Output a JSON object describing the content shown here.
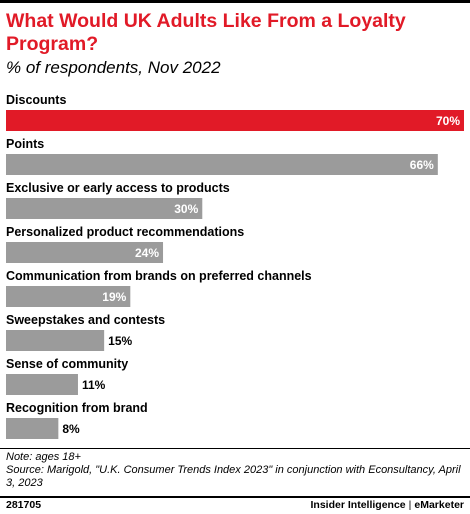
{
  "header": {
    "title": "What Would UK Adults Like From a Loyalty Program?",
    "subtitle": "% of respondents, Nov 2022"
  },
  "colors": {
    "title": "#e11a27",
    "highlight_bar": "#e11a27",
    "bar": "#9b9b9b"
  },
  "chart_data": {
    "type": "bar",
    "orientation": "horizontal",
    "categories": [
      "Discounts",
      "Points",
      "Exclusive or early access to products",
      "Personalized product recommendations",
      "Communication from brands on preferred channels",
      "Sweepstakes and contests",
      "Sense of community",
      "Recognition from brand"
    ],
    "values": [
      70,
      66,
      30,
      24,
      19,
      15,
      11,
      8
    ],
    "value_labels": [
      "70%",
      "66%",
      "30%",
      "24%",
      "19%",
      "15%",
      "11%",
      "8%"
    ],
    "highlight_index": 0,
    "xlim": [
      0,
      70
    ],
    "grid": false
  },
  "footer": {
    "note": "Note: ages 18+",
    "source": "Source: Marigold, \"U.K. Consumer Trends Index 2023\" in conjunction with Econsultancy, April 3, 2023",
    "chart_id": "281705",
    "brand_left": "Insider Intelligence",
    "brand_sep": "|",
    "brand_right": "eMarketer"
  }
}
